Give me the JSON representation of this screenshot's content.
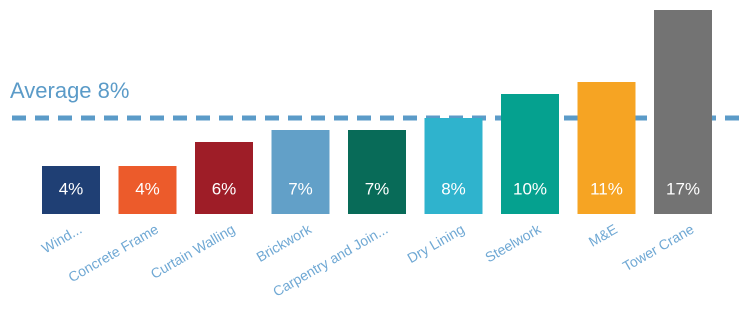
{
  "chart_data": {
    "type": "bar",
    "title": "",
    "xlabel": "",
    "ylabel": "",
    "ylim": [
      0,
      17
    ],
    "categories": [
      "Wind...",
      "Concrete Frame",
      "Curtain Walling",
      "Brickwork",
      "Carpentry and Join...",
      "Dry Lining",
      "Steelwork",
      "M&E",
      "Tower Crane"
    ],
    "values": [
      4,
      4,
      6,
      7,
      7,
      8,
      10,
      11,
      17
    ],
    "data_labels": [
      "4%",
      "4%",
      "6%",
      "7%",
      "7%",
      "8%",
      "10%",
      "11%",
      "17%"
    ],
    "colors": [
      "#1f3f74",
      "#ec5b2b",
      "#9e1d27",
      "#62a0c8",
      "#086b58",
      "#2fb3cd",
      "#05a18f",
      "#f6a423",
      "#737373"
    ],
    "average": {
      "value": 8,
      "label": "Average 8%",
      "color": "#5b9bc8",
      "style": "dashed"
    },
    "grid": false,
    "legend": "none"
  }
}
